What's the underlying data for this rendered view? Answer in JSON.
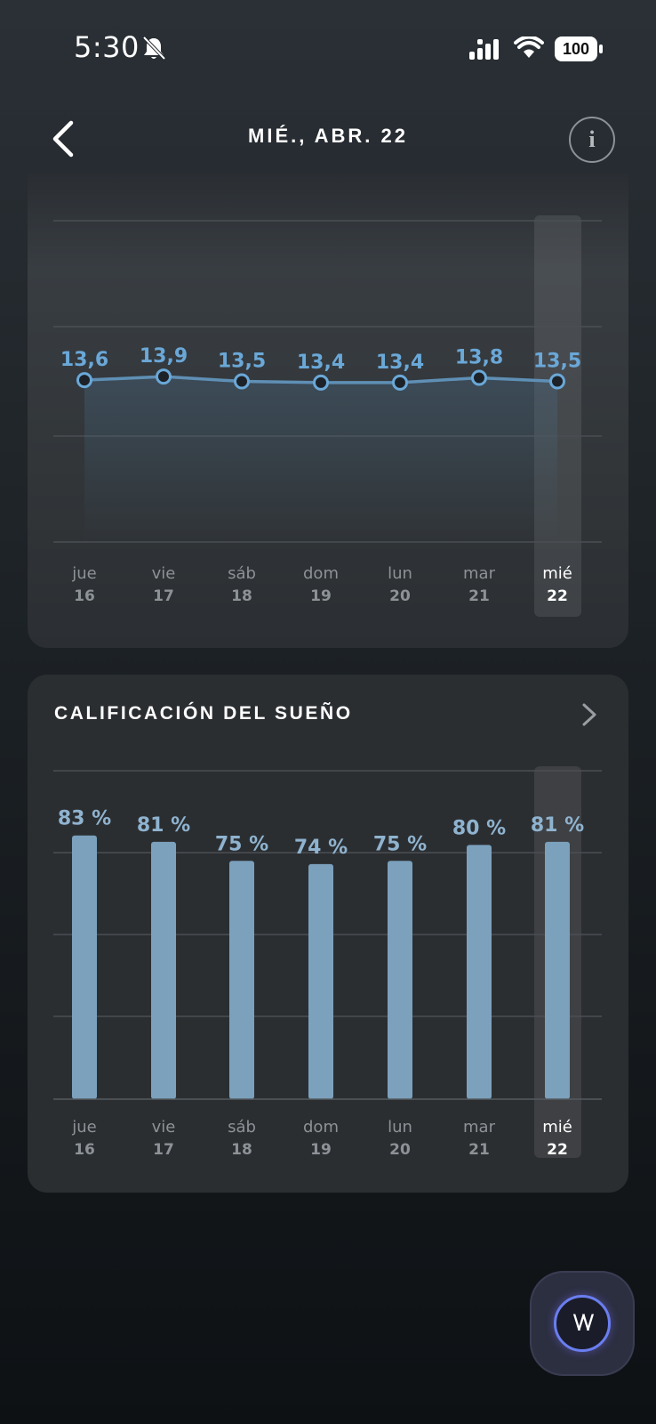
{
  "status_bar": {
    "time": "5:30",
    "battery": "100",
    "icons": [
      "bell-slash-icon",
      "signal-icon",
      "wifi-icon",
      "battery-icon"
    ]
  },
  "header": {
    "title": "MIÉ., ABR. 22",
    "icons": [
      "chevron-left-icon",
      "info-icon"
    ]
  },
  "colors": {
    "accent": "#6aa8d8",
    "bar": "#7ba1bd",
    "bar_label": "#8fb3cf",
    "axis_day": "#8d9297",
    "grid": "#4a4f54"
  },
  "hrv_card": {
    "days": [
      {
        "day": "jue",
        "date": "16"
      },
      {
        "day": "vie",
        "date": "17"
      },
      {
        "day": "sáb",
        "date": "18"
      },
      {
        "day": "dom",
        "date": "19"
      },
      {
        "day": "lun",
        "date": "20"
      },
      {
        "day": "mar",
        "date": "21"
      },
      {
        "day": "mié",
        "date": "22"
      }
    ],
    "selected_index": 6
  },
  "sleep_card": {
    "title": "CALIFICACIÓN DEL SUEÑO",
    "selected_index": 6
  },
  "chart_data": [
    {
      "type": "line",
      "categories": [
        "jue 16",
        "vie 17",
        "sáb 18",
        "dom 19",
        "lun 20",
        "mar 21",
        "mié 22"
      ],
      "values": [
        13.6,
        13.9,
        13.5,
        13.4,
        13.4,
        13.8,
        13.5
      ],
      "labels": [
        "13,6",
        "13,9",
        "13,5",
        "13,4",
        "13,4",
        "13,8",
        "13,5"
      ],
      "ylim": [
        0,
        27
      ],
      "grid": true
    },
    {
      "type": "bar",
      "categories": [
        "jue 16",
        "vie 17",
        "sáb 18",
        "dom 19",
        "lun 20",
        "mar 21",
        "mié 22"
      ],
      "values": [
        83,
        81,
        75,
        74,
        75,
        80,
        81
      ],
      "labels": [
        "83 %",
        "81 %",
        "75 %",
        "74 %",
        "75 %",
        "80 %",
        "81 %"
      ],
      "title": "CALIFICACIÓN DEL SUEÑO",
      "ylim": [
        0,
        100
      ],
      "grid": true
    }
  ],
  "fab": {
    "icon": "assistant-icon",
    "glyph": "\\/\\/"
  }
}
